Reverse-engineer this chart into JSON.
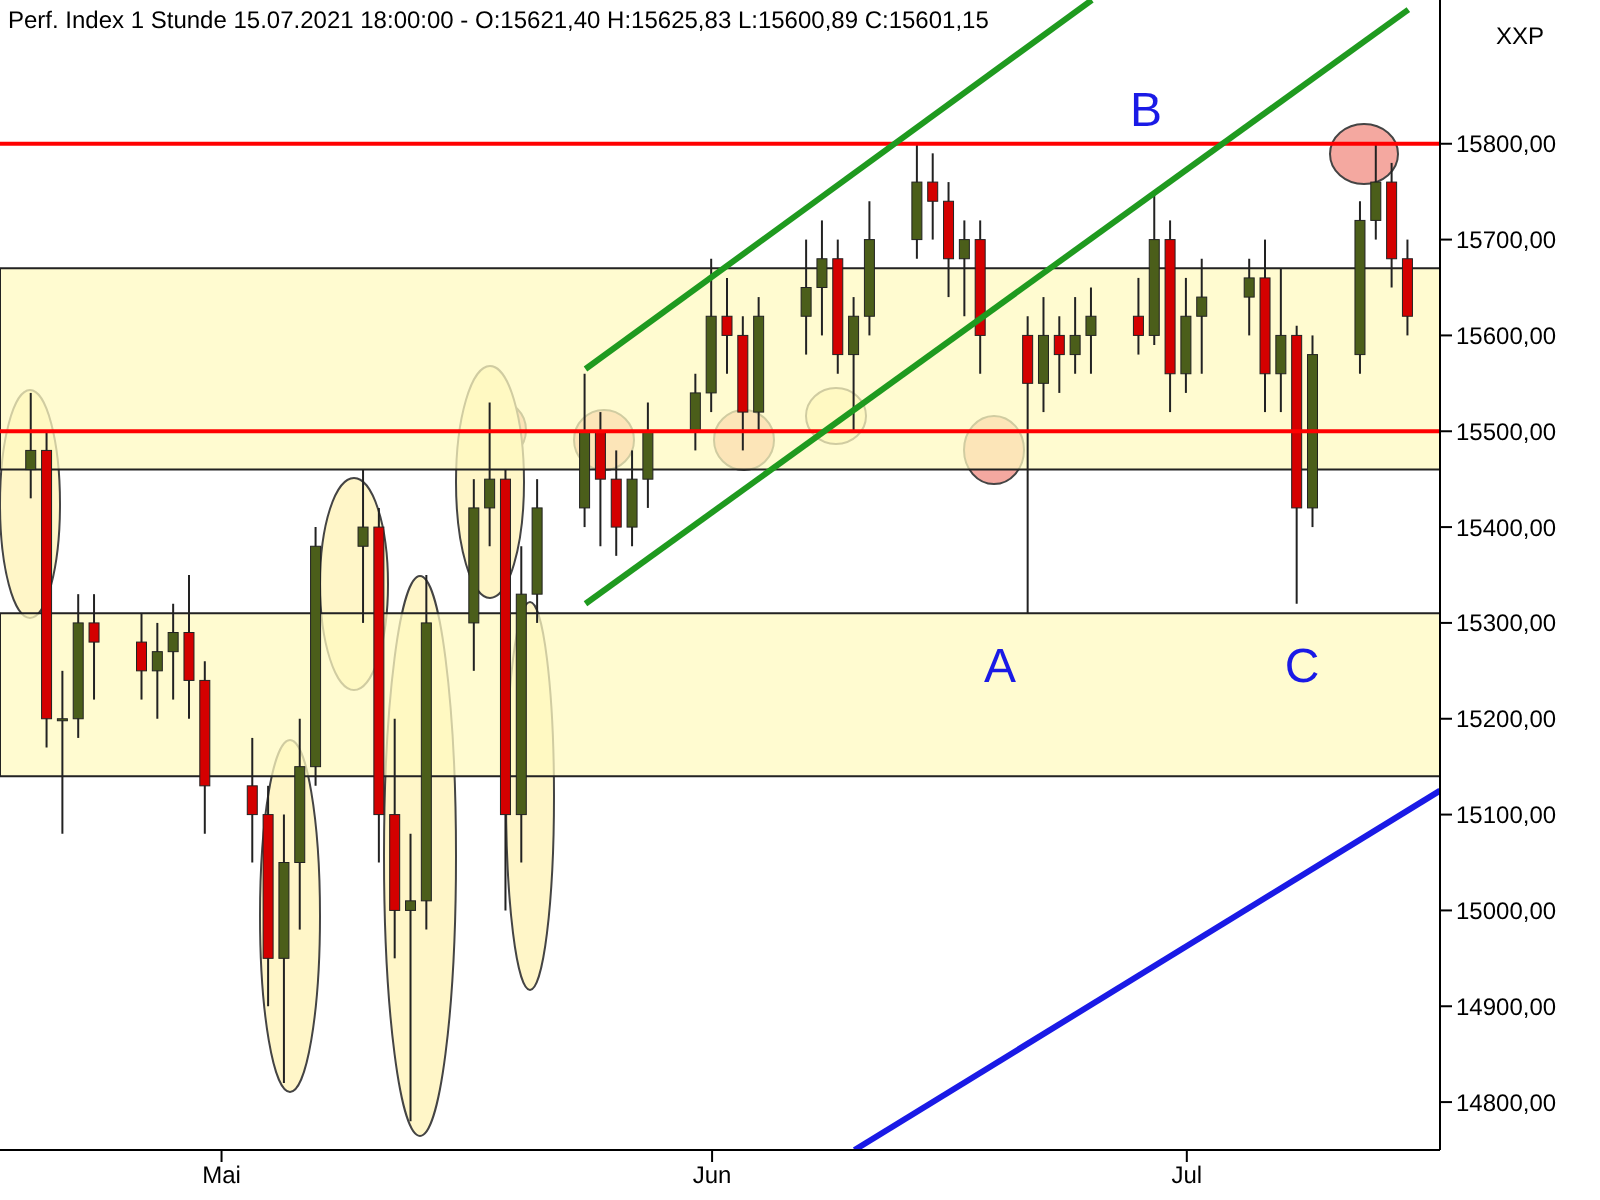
{
  "chart_data": {
    "type": "candlestick",
    "title": "Perf. Index 1 Stunde  15.07.2021 18:00:00 - O:15621,40 H:15625,83 L:15600,89 C:15601,15",
    "x": [
      "2021-04-19",
      "2021-04-20",
      "2021-04-21",
      "2021-04-22",
      "2021-04-23",
      "2021-04-26",
      "2021-04-27",
      "2021-04-28",
      "2021-04-29",
      "2021-04-30",
      "2021-05-03",
      "2021-05-04",
      "2021-05-05",
      "2021-05-06",
      "2021-05-07",
      "2021-05-10",
      "2021-05-11",
      "2021-05-12",
      "2021-05-13",
      "2021-05-14",
      "2021-05-17",
      "2021-05-18",
      "2021-05-19",
      "2021-05-20",
      "2021-05-21",
      "2021-05-24",
      "2021-05-25",
      "2021-05-26",
      "2021-05-27",
      "2021-05-28",
      "2021-05-31",
      "2021-06-01",
      "2021-06-02",
      "2021-06-03",
      "2021-06-04",
      "2021-06-07",
      "2021-06-08",
      "2021-06-09",
      "2021-06-10",
      "2021-06-11",
      "2021-06-14",
      "2021-06-15",
      "2021-06-16",
      "2021-06-17",
      "2021-06-18",
      "2021-06-21",
      "2021-06-22",
      "2021-06-23",
      "2021-06-24",
      "2021-06-25",
      "2021-06-28",
      "2021-06-29",
      "2021-06-30",
      "2021-07-01",
      "2021-07-02",
      "2021-07-05",
      "2021-07-06",
      "2021-07-07",
      "2021-07-08",
      "2021-07-09",
      "2021-07-12",
      "2021-07-13",
      "2021-07-14",
      "2021-07-15"
    ],
    "ohlc": [
      [
        15460,
        15540,
        15430,
        15480
      ],
      [
        15480,
        15500,
        15170,
        15200
      ],
      [
        15200,
        15250,
        15080,
        15200
      ],
      [
        15200,
        15330,
        15180,
        15300
      ],
      [
        15300,
        15330,
        15220,
        15280
      ],
      [
        15280,
        15310,
        15220,
        15250
      ],
      [
        15250,
        15300,
        15200,
        15270
      ],
      [
        15270,
        15320,
        15220,
        15290
      ],
      [
        15290,
        15350,
        15200,
        15240
      ],
      [
        15240,
        15260,
        15080,
        15130
      ],
      [
        15130,
        15180,
        15050,
        15100
      ],
      [
        15100,
        15130,
        14900,
        14950
      ],
      [
        14950,
        15100,
        14820,
        15050
      ],
      [
        15050,
        15200,
        14980,
        15150
      ],
      [
        15150,
        15400,
        15130,
        15380
      ],
      [
        15380,
        15460,
        15300,
        15400
      ],
      [
        15400,
        15420,
        15050,
        15100
      ],
      [
        15100,
        15200,
        14950,
        15000
      ],
      [
        15000,
        15080,
        14780,
        15010
      ],
      [
        15010,
        15350,
        14980,
        15300
      ],
      [
        15300,
        15450,
        15250,
        15420
      ],
      [
        15420,
        15530,
        15380,
        15450
      ],
      [
        15450,
        15460,
        15000,
        15100
      ],
      [
        15100,
        15380,
        15050,
        15330
      ],
      [
        15330,
        15450,
        15300,
        15420
      ],
      [
        15420,
        15560,
        15400,
        15500
      ],
      [
        15500,
        15520,
        15380,
        15450
      ],
      [
        15450,
        15480,
        15370,
        15400
      ],
      [
        15400,
        15480,
        15380,
        15450
      ],
      [
        15450,
        15530,
        15420,
        15500
      ],
      [
        15500,
        15560,
        15480,
        15540
      ],
      [
        15540,
        15680,
        15520,
        15620
      ],
      [
        15620,
        15660,
        15560,
        15600
      ],
      [
        15600,
        15620,
        15480,
        15520
      ],
      [
        15520,
        15640,
        15500,
        15620
      ],
      [
        15620,
        15700,
        15580,
        15650
      ],
      [
        15650,
        15720,
        15600,
        15680
      ],
      [
        15680,
        15700,
        15560,
        15580
      ],
      [
        15580,
        15640,
        15500,
        15620
      ],
      [
        15620,
        15740,
        15600,
        15700
      ],
      [
        15700,
        15800,
        15680,
        15760
      ],
      [
        15760,
        15790,
        15700,
        15740
      ],
      [
        15740,
        15760,
        15640,
        15680
      ],
      [
        15680,
        15720,
        15620,
        15700
      ],
      [
        15700,
        15720,
        15560,
        15600
      ],
      [
        15600,
        15620,
        15310,
        15550
      ],
      [
        15550,
        15640,
        15520,
        15600
      ],
      [
        15600,
        15620,
        15540,
        15580
      ],
      [
        15580,
        15640,
        15560,
        15600
      ],
      [
        15600,
        15650,
        15560,
        15620
      ],
      [
        15620,
        15660,
        15580,
        15600
      ],
      [
        15600,
        15750,
        15590,
        15700
      ],
      [
        15700,
        15720,
        15520,
        15560
      ],
      [
        15560,
        15660,
        15540,
        15620
      ],
      [
        15620,
        15680,
        15560,
        15640
      ],
      [
        15640,
        15680,
        15600,
        15660
      ],
      [
        15660,
        15700,
        15520,
        15560
      ],
      [
        15560,
        15670,
        15520,
        15600
      ],
      [
        15600,
        15610,
        15320,
        15420
      ],
      [
        15420,
        15600,
        15400,
        15580
      ],
      [
        15580,
        15740,
        15560,
        15720
      ],
      [
        15720,
        15800,
        15700,
        15760
      ],
      [
        15760,
        15780,
        15650,
        15680
      ],
      [
        15680,
        15700,
        15600,
        15620
      ]
    ],
    "colors": [
      "#4b5e1a",
      "#d40000",
      "#4b5e1a",
      "#4b5e1a",
      "#d40000",
      "#d40000",
      "#4b5e1a",
      "#4b5e1a",
      "#d40000",
      "#d40000",
      "#d40000",
      "#d40000",
      "#4b5e1a",
      "#4b5e1a",
      "#4b5e1a",
      "#4b5e1a",
      "#d40000",
      "#d40000",
      "#4b5e1a",
      "#4b5e1a",
      "#4b5e1a",
      "#4b5e1a",
      "#d40000",
      "#4b5e1a",
      "#4b5e1a",
      "#4b5e1a",
      "#d40000",
      "#d40000",
      "#4b5e1a",
      "#4b5e1a",
      "#4b5e1a",
      "#4b5e1a",
      "#d40000",
      "#d40000",
      "#4b5e1a",
      "#4b5e1a",
      "#4b5e1a",
      "#d40000",
      "#4b5e1a",
      "#4b5e1a",
      "#4b5e1a",
      "#d40000",
      "#d40000",
      "#4b5e1a",
      "#d40000",
      "#d40000",
      "#4b5e1a",
      "#d40000",
      "#4b5e1a",
      "#4b5e1a",
      "#d40000",
      "#4b5e1a",
      "#d40000",
      "#4b5e1a",
      "#4b5e1a",
      "#4b5e1a",
      "#d40000",
      "#4b5e1a",
      "#d40000",
      "#4b5e1a",
      "#4b5e1a",
      "#4b5e1a",
      "#d40000",
      "#d40000"
    ],
    "series": [
      {
        "type": "line",
        "color": "#1f9a1f",
        "x": [
          "2021-05-24",
          "2021-07-15"
        ],
        "values": [
          15320,
          15940
        ]
      },
      {
        "type": "line",
        "color": "#1f9a1f",
        "x": [
          "2021-05-24",
          "2021-06-25"
        ],
        "values": [
          15565,
          15950
        ]
      },
      {
        "type": "line",
        "color": "#1a1ae6",
        "x": [
          "2021-06-10",
          "2021-07-17"
        ],
        "values": [
          14750,
          15125
        ]
      }
    ],
    "xlim": [
      "2021-04-17",
      "2021-07-17"
    ],
    "xticks": [
      {
        "value": "2021-05-01",
        "label": "Mai"
      },
      {
        "value": "2021-06-01",
        "label": "Jun"
      },
      {
        "value": "2021-07-01",
        "label": "Jul"
      }
    ],
    "ylim": [
      14750,
      15950
    ],
    "yticks": [
      {
        "value": 14800,
        "label": "14800,00"
      },
      {
        "value": 14900,
        "label": "14900,00"
      },
      {
        "value": 15000,
        "label": "15000,00"
      },
      {
        "value": 15100,
        "label": "15100,00"
      },
      {
        "value": 15200,
        "label": "15200,00"
      },
      {
        "value": 15300,
        "label": "15300,00"
      },
      {
        "value": 15400,
        "label": "15400,00"
      },
      {
        "value": 15500,
        "label": "15500,00"
      },
      {
        "value": 15600,
        "label": "15600,00"
      },
      {
        "value": 15700,
        "label": "15700,00"
      },
      {
        "value": 15800,
        "label": "15800,00"
      }
    ],
    "ref_lines": [
      {
        "axis": "y",
        "value": 15500,
        "color": "#ff0000"
      },
      {
        "axis": "y",
        "value": 15800,
        "color": "#ff0000"
      }
    ],
    "bands": [
      {
        "axis": "y",
        "from": 15140,
        "to": 15310,
        "color": "#fffac0"
      },
      {
        "axis": "y",
        "from": 15460,
        "to": 15670,
        "color": "#fffac0"
      }
    ],
    "annotations": [
      "A",
      "B",
      "C",
      "XXP"
    ]
  }
}
